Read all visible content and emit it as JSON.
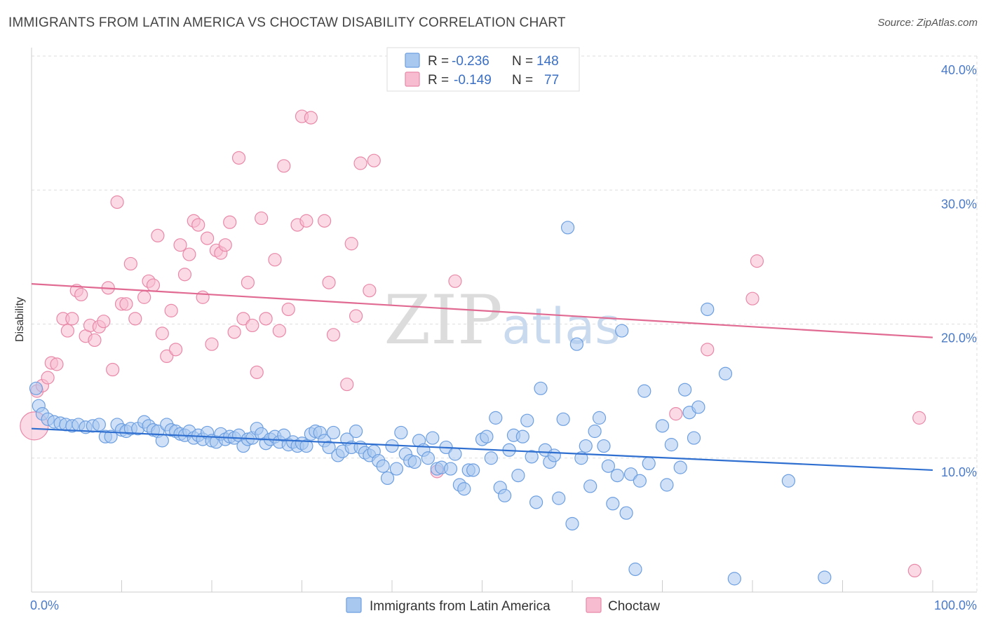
{
  "title": "IMMIGRANTS FROM LATIN AMERICA VS CHOCTAW DISABILITY CORRELATION CHART",
  "source": "Source: ZipAtlas.com",
  "watermark": {
    "zip": "ZIP",
    "atlas": "atlas"
  },
  "legend": {
    "rows": [
      {
        "r_label": "R = ",
        "r_value": "-0.236",
        "n_label": "N = ",
        "n_value": "148",
        "color": "#a9c8f0",
        "stroke": "#6d9fe0"
      },
      {
        "r_label": "R = ",
        "r_value": "-0.149",
        "n_label": "N = ",
        "n_value": "77",
        "color": "#f7bcd0",
        "stroke": "#e889a8"
      }
    ]
  },
  "chart_data": {
    "type": "scatter",
    "title": "IMMIGRANTS FROM LATIN AMERICA VS CHOCTAW DISABILITY CORRELATION CHART",
    "ylabel": "Disability",
    "xlim": [
      0,
      100
    ],
    "ylim": [
      0,
      40
    ],
    "x_ticks": [
      {
        "value": 0,
        "label": "0.0%"
      },
      {
        "value": 100,
        "label": "100.0%"
      }
    ],
    "y_ticks": [
      {
        "value": 10,
        "label": "10.0%"
      },
      {
        "value": 20,
        "label": "20.0%"
      },
      {
        "value": 30,
        "label": "30.0%"
      },
      {
        "value": 40,
        "label": "40.0%"
      }
    ],
    "grid": true,
    "legend_position": "top-center",
    "series": [
      {
        "name": "Immigrants from Latin America",
        "color": "#6d9fe0",
        "fill": "#a9c8f0",
        "line_color": "#2f6fd0",
        "trend": {
          "x": [
            0,
            100
          ],
          "y": [
            12.2,
            9.1
          ]
        },
        "points": [
          [
            0.5,
            15.2
          ],
          [
            0.8,
            13.9
          ],
          [
            1.2,
            13.3
          ],
          [
            1.8,
            12.9
          ],
          [
            2.5,
            12.7
          ],
          [
            3.2,
            12.6
          ],
          [
            3.8,
            12.5
          ],
          [
            4.5,
            12.4
          ],
          [
            5.2,
            12.5
          ],
          [
            6,
            12.3
          ],
          [
            6.8,
            12.4
          ],
          [
            7.5,
            12.5
          ],
          [
            8.2,
            11.6
          ],
          [
            8.8,
            11.6
          ],
          [
            9.5,
            12.5
          ],
          [
            10,
            12.1
          ],
          [
            10.5,
            12
          ],
          [
            11,
            12.2
          ],
          [
            11.8,
            12.2
          ],
          [
            12.5,
            12.7
          ],
          [
            13,
            12.4
          ],
          [
            13.5,
            12.1
          ],
          [
            14,
            12
          ],
          [
            14.5,
            11.3
          ],
          [
            15,
            12.5
          ],
          [
            15.5,
            12.1
          ],
          [
            16,
            12
          ],
          [
            16.5,
            11.8
          ],
          [
            17,
            11.7
          ],
          [
            17.5,
            12
          ],
          [
            18,
            11.5
          ],
          [
            18.5,
            11.7
          ],
          [
            19,
            11.4
          ],
          [
            19.5,
            11.9
          ],
          [
            20,
            11.3
          ],
          [
            20.5,
            11.2
          ],
          [
            21,
            11.8
          ],
          [
            21.5,
            11.4
          ],
          [
            22,
            11.6
          ],
          [
            22.5,
            11.5
          ],
          [
            23,
            11.7
          ],
          [
            23.5,
            10.9
          ],
          [
            24,
            11.4
          ],
          [
            24.5,
            11.5
          ],
          [
            25,
            12.2
          ],
          [
            25.5,
            11.8
          ],
          [
            26,
            11.1
          ],
          [
            26.5,
            11.4
          ],
          [
            27,
            11.6
          ],
          [
            27.5,
            11.2
          ],
          [
            28,
            11.7
          ],
          [
            28.5,
            11
          ],
          [
            29,
            11.2
          ],
          [
            29.5,
            10.9
          ],
          [
            30,
            11.1
          ],
          [
            30.5,
            10.9
          ],
          [
            31,
            11.8
          ],
          [
            31.5,
            12
          ],
          [
            32,
            11.9
          ],
          [
            32.5,
            11.3
          ],
          [
            33,
            10.8
          ],
          [
            33.5,
            11.9
          ],
          [
            34,
            10.2
          ],
          [
            34.5,
            10.5
          ],
          [
            35,
            11.4
          ],
          [
            35.5,
            10.8
          ],
          [
            36,
            12
          ],
          [
            36.5,
            10.8
          ],
          [
            37,
            10.4
          ],
          [
            37.5,
            10.2
          ],
          [
            38,
            10.5
          ],
          [
            38.5,
            9.8
          ],
          [
            39,
            9.4
          ],
          [
            39.5,
            8.5
          ],
          [
            40,
            10.9
          ],
          [
            40.5,
            9.2
          ],
          [
            41,
            11.9
          ],
          [
            41.5,
            10.3
          ],
          [
            42,
            9.8
          ],
          [
            42.5,
            9.7
          ],
          [
            43,
            11.3
          ],
          [
            43.5,
            10.6
          ],
          [
            44,
            10
          ],
          [
            44.5,
            11.5
          ],
          [
            45,
            9.2
          ],
          [
            45.5,
            9.3
          ],
          [
            46,
            10.8
          ],
          [
            46.5,
            9.2
          ],
          [
            47,
            10.3
          ],
          [
            47.5,
            8
          ],
          [
            48,
            7.7
          ],
          [
            48.5,
            9.1
          ],
          [
            49,
            9.1
          ],
          [
            50,
            11.4
          ],
          [
            50.5,
            11.6
          ],
          [
            51,
            10
          ],
          [
            51.5,
            13
          ],
          [
            52,
            7.8
          ],
          [
            52.5,
            7.2
          ],
          [
            53,
            10.6
          ],
          [
            53.5,
            11.7
          ],
          [
            54,
            8.7
          ],
          [
            54.5,
            11.6
          ],
          [
            55,
            12.8
          ],
          [
            55.5,
            10.1
          ],
          [
            56,
            6.7
          ],
          [
            56.5,
            15.2
          ],
          [
            57,
            10.6
          ],
          [
            57.5,
            9.7
          ],
          [
            58,
            10.2
          ],
          [
            58.5,
            7
          ],
          [
            59,
            12.9
          ],
          [
            59.5,
            27.2
          ],
          [
            60,
            5.1
          ],
          [
            60.5,
            18.5
          ],
          [
            61,
            10
          ],
          [
            61.5,
            10.9
          ],
          [
            62,
            7.9
          ],
          [
            62.5,
            12
          ],
          [
            63,
            13
          ],
          [
            63.5,
            10.9
          ],
          [
            64,
            9.4
          ],
          [
            64.5,
            6.6
          ],
          [
            65,
            8.7
          ],
          [
            65.5,
            19.5
          ],
          [
            66,
            5.9
          ],
          [
            66.5,
            8.8
          ],
          [
            67,
            1.7
          ],
          [
            67.5,
            8.3
          ],
          [
            68,
            15
          ],
          [
            68.5,
            9.6
          ],
          [
            70,
            12.4
          ],
          [
            70.5,
            8
          ],
          [
            71,
            11
          ],
          [
            72,
            9.3
          ],
          [
            72.5,
            15.1
          ],
          [
            73,
            13.4
          ],
          [
            73.5,
            11.5
          ],
          [
            74,
            13.8
          ],
          [
            75,
            21.1
          ],
          [
            77,
            16.3
          ],
          [
            78,
            1
          ],
          [
            84,
            8.3
          ],
          [
            88,
            1.1
          ]
        ]
      },
      {
        "name": "Choctaw",
        "color": "#e889a8",
        "fill": "#f7bcd0",
        "line_color": "#e06a92",
        "trend": {
          "x": [
            0,
            100
          ],
          "y": [
            23.0,
            19.0
          ]
        },
        "points": [
          [
            0.3,
            12.4
          ],
          [
            0.6,
            15
          ],
          [
            1.2,
            15.4
          ],
          [
            1.8,
            16
          ],
          [
            2.2,
            17.1
          ],
          [
            2.8,
            17
          ],
          [
            3.5,
            20.4
          ],
          [
            4,
            19.5
          ],
          [
            4.5,
            20.4
          ],
          [
            5,
            22.5
          ],
          [
            5.5,
            22.2
          ],
          [
            6,
            19.1
          ],
          [
            6.5,
            19.9
          ],
          [
            7,
            18.8
          ],
          [
            7.5,
            19.8
          ],
          [
            8,
            20.2
          ],
          [
            8.5,
            22.7
          ],
          [
            9,
            16.6
          ],
          [
            9.5,
            29.1
          ],
          [
            10,
            21.5
          ],
          [
            10.5,
            21.5
          ],
          [
            11,
            24.5
          ],
          [
            11.5,
            20.4
          ],
          [
            12.5,
            22
          ],
          [
            13,
            23.2
          ],
          [
            13.5,
            22.9
          ],
          [
            14,
            26.6
          ],
          [
            14.5,
            19.3
          ],
          [
            15,
            17.6
          ],
          [
            15.5,
            21
          ],
          [
            16,
            18.1
          ],
          [
            16.5,
            25.9
          ],
          [
            17,
            23.7
          ],
          [
            17.5,
            25.2
          ],
          [
            18,
            27.7
          ],
          [
            18.5,
            27.4
          ],
          [
            19,
            22
          ],
          [
            19.5,
            26.4
          ],
          [
            20,
            18.5
          ],
          [
            20.5,
            25.5
          ],
          [
            21,
            25.3
          ],
          [
            21.5,
            25.9
          ],
          [
            22,
            27.6
          ],
          [
            22.5,
            19.4
          ],
          [
            23,
            32.4
          ],
          [
            23.5,
            20.4
          ],
          [
            24,
            23.1
          ],
          [
            24.5,
            19.9
          ],
          [
            25,
            16.4
          ],
          [
            25.5,
            27.9
          ],
          [
            26,
            20.4
          ],
          [
            27,
            24.8
          ],
          [
            27.5,
            19.5
          ],
          [
            28,
            31.8
          ],
          [
            28.5,
            21.1
          ],
          [
            29.5,
            27.4
          ],
          [
            30,
            35.5
          ],
          [
            30.5,
            27.7
          ],
          [
            31,
            35.4
          ],
          [
            32.5,
            27.7
          ],
          [
            33,
            23.1
          ],
          [
            33.5,
            19.2
          ],
          [
            35,
            15.5
          ],
          [
            35.5,
            26
          ],
          [
            36,
            20.6
          ],
          [
            36.5,
            32
          ],
          [
            37.5,
            22.5
          ],
          [
            38,
            32.2
          ],
          [
            45,
            9
          ],
          [
            47,
            23.2
          ],
          [
            71.5,
            13.3
          ],
          [
            75,
            18.1
          ],
          [
            80,
            21.9
          ],
          [
            80.5,
            24.7
          ],
          [
            98,
            1.6
          ],
          [
            98.5,
            13
          ]
        ]
      }
    ]
  },
  "bottom_legend": [
    {
      "label": "Immigrants from Latin America",
      "fill": "#a9c8f0",
      "stroke": "#6d9fe0"
    },
    {
      "label": "Choctaw",
      "fill": "#f7bcd0",
      "stroke": "#e889a8"
    }
  ]
}
